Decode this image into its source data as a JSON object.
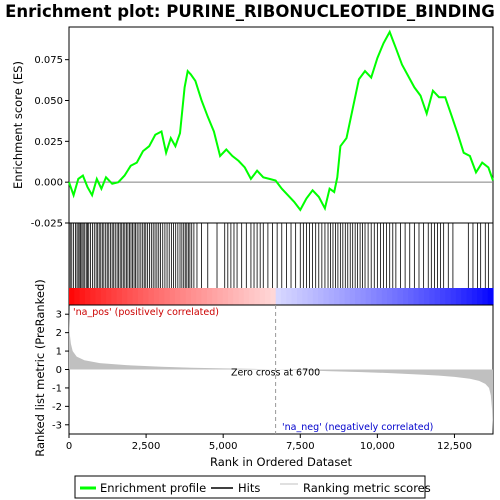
{
  "chart_data": {
    "type": "line",
    "title": "Enrichment plot: PURINE_RIBONUCLEOTIDE_BINDING",
    "es_panel": {
      "ylabel": "Enrichment score (ES)",
      "ylim": [
        -0.025,
        0.095
      ],
      "yticks": [
        -0.025,
        0.0,
        0.025,
        0.05,
        0.075
      ],
      "ytick_labels": [
        "-0.025",
        "0.000",
        "0.025",
        "0.050",
        "0.075"
      ],
      "line_color": "#00ff00",
      "zero_line": true,
      "series": [
        {
          "x": [
            0,
            150,
            300,
            450,
            600,
            750,
            900,
            1050,
            1200,
            1400,
            1600,
            1800,
            2000,
            2200,
            2400,
            2600,
            2800,
            3000,
            3150,
            3300,
            3450,
            3600,
            3750,
            3850,
            3950,
            4100,
            4300,
            4500,
            4700,
            4900,
            5100,
            5300,
            5500,
            5700,
            5900,
            6100,
            6300,
            6500,
            6700,
            6900,
            7100,
            7300,
            7500,
            7700,
            7900,
            8100,
            8300,
            8450,
            8600,
            8700,
            8800,
            9000,
            9200,
            9400,
            9600,
            9800,
            10000,
            10200,
            10400,
            10500,
            10600,
            10800,
            11000,
            11200,
            11400,
            11600,
            11800,
            12000,
            12200,
            12400,
            12600,
            12800,
            13000,
            13200,
            13400,
            13600,
            13750
          ],
          "y": [
            0.0,
            -0.008,
            0.002,
            0.004,
            -0.003,
            -0.008,
            0.002,
            -0.004,
            0.003,
            -0.001,
            0.0,
            0.004,
            0.01,
            0.012,
            0.019,
            0.022,
            0.029,
            0.031,
            0.018,
            0.027,
            0.022,
            0.03,
            0.058,
            0.068,
            0.066,
            0.062,
            0.05,
            0.04,
            0.031,
            0.016,
            0.02,
            0.016,
            0.013,
            0.009,
            0.002,
            0.007,
            0.003,
            0.002,
            0.001,
            -0.004,
            -0.008,
            -0.012,
            -0.017,
            -0.01,
            -0.005,
            -0.009,
            -0.016,
            -0.004,
            -0.006,
            0.003,
            0.022,
            0.027,
            0.045,
            0.063,
            0.068,
            0.064,
            0.076,
            0.085,
            0.092,
            0.087,
            0.082,
            0.072,
            0.065,
            0.058,
            0.053,
            0.042,
            0.056,
            0.052,
            0.052,
            0.041,
            0.03,
            0.018,
            0.016,
            0.006,
            0.012,
            0.009,
            0.001
          ]
        }
      ]
    },
    "hits": {
      "positions": [
        40,
        90,
        150,
        210,
        260,
        300,
        350,
        380,
        420,
        460,
        510,
        560,
        600,
        640,
        700,
        760,
        820,
        880,
        930,
        980,
        1030,
        1080,
        1130,
        1190,
        1240,
        1290,
        1350,
        1400,
        1450,
        1500,
        1560,
        1610,
        1660,
        1710,
        1760,
        1810,
        1860,
        1910,
        1960,
        2010,
        2060,
        2110,
        2160,
        2210,
        2270,
        2330,
        2390,
        2440,
        2490,
        2550,
        2610,
        2670,
        2730,
        2790,
        2850,
        2910,
        2970,
        3040,
        3110,
        3180,
        3250,
        3320,
        3390,
        3460,
        3530,
        3600,
        3660,
        3720,
        3770,
        3820,
        3870,
        3920,
        3980,
        4050,
        4150,
        4300,
        4500,
        4800,
        5050,
        5150,
        5250,
        5350,
        5450,
        5600,
        5750,
        5900,
        6000,
        6100,
        6200,
        6300,
        6450,
        6600,
        6750,
        6900,
        7050,
        7200,
        7350,
        7500,
        7600,
        7700,
        7800,
        7900,
        8000,
        8100,
        8200,
        8300,
        8400,
        8480,
        8560,
        8640,
        8720,
        8800,
        8880,
        8960,
        9040,
        9120,
        9200,
        9280,
        9360,
        9440,
        9520,
        9600,
        9700,
        9800,
        9900,
        10000,
        10100,
        10200,
        10300,
        10400,
        10500,
        10600,
        10750,
        10900,
        11050,
        11200,
        11350,
        11500,
        11650,
        11750,
        11850,
        11950,
        12050,
        12150,
        12300,
        12450,
        12950,
        13100,
        13250,
        13350,
        13500,
        13600
      ],
      "color": "#000000"
    },
    "rank_colorbar": {
      "n": 13750,
      "positive_color": "#ff0000",
      "negative_color": "#0000ff"
    },
    "metric_panel": {
      "ylabel": "Ranked list metric (PreRanked)",
      "xlabel": "Rank in Ordered Dataset",
      "xlim": [
        0,
        13750
      ],
      "xticks": [
        0,
        2500,
        5000,
        7500,
        10000,
        12500
      ],
      "xtick_labels": [
        "0",
        "2,500",
        "5,000",
        "7,500",
        "10,000",
        "12,500"
      ],
      "ylim": [
        -3.5,
        3.5
      ],
      "yticks": [
        -3,
        -2,
        -1,
        0,
        1,
        2,
        3
      ],
      "ytick_labels": [
        "-3",
        "-2",
        "-1",
        "0",
        "1",
        "2",
        "3"
      ],
      "fill_color": "#c0c0c0",
      "series": [
        {
          "x": [
            0,
            20,
            60,
            120,
            250,
            500,
            1000,
            2000,
            3000,
            4000,
            5000,
            6000,
            6700,
            7500,
            8500,
            9500,
            10500,
            11500,
            12000,
            12500,
            13000,
            13300,
            13500,
            13620,
            13680,
            13720,
            13750
          ],
          "y": [
            3.3,
            2.0,
            1.4,
            1.0,
            0.7,
            0.5,
            0.35,
            0.22,
            0.15,
            0.1,
            0.06,
            0.03,
            0.0,
            -0.04,
            -0.09,
            -0.14,
            -0.2,
            -0.28,
            -0.33,
            -0.4,
            -0.5,
            -0.62,
            -0.78,
            -1.0,
            -1.4,
            -2.2,
            -3.4
          ]
        }
      ]
    },
    "annotations": {
      "pos_label": "'na_pos' (positively correlated)",
      "pos_color": "#cc0000",
      "neg_label": "'na_neg' (negatively correlated)",
      "neg_color": "#0000cc",
      "zero_cross_label": "Zero cross at 6700",
      "zero_cross_x": 6700
    },
    "legend": {
      "placement": "bottom",
      "items": [
        {
          "label": "Enrichment profile",
          "color": "#00ff00",
          "kind": "thick-line"
        },
        {
          "label": "Hits",
          "color": "#000000",
          "kind": "line"
        },
        {
          "label": "Ranking metric scores",
          "color": "#c0c0c0",
          "kind": "line"
        }
      ]
    }
  }
}
